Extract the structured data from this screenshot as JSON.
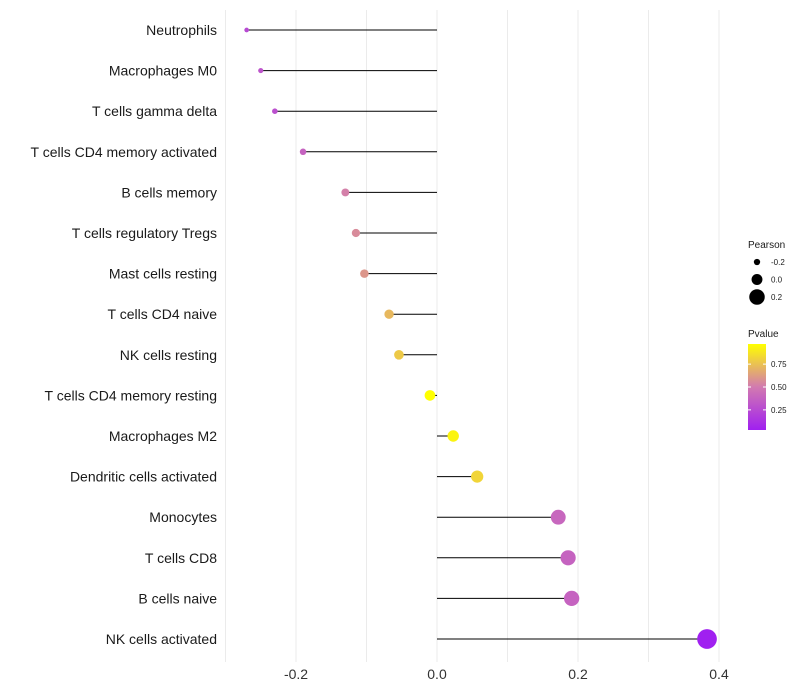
{
  "chart_data": {
    "type": "lollipop",
    "categories": [
      "Neutrophils",
      "Macrophages M0",
      "T cells gamma delta",
      "T cells CD4 memory activated",
      "B cells memory",
      "T cells regulatory  Tregs ",
      "Mast cells resting",
      "T cells CD4 naive",
      "NK cells resting",
      "T cells CD4 memory resting",
      "Macrophages M2",
      "Dendritic cells activated",
      "Monocytes",
      "T cells CD8",
      "B cells naive",
      "NK cells activated"
    ],
    "pearson": [
      -0.27,
      -0.25,
      -0.23,
      -0.19,
      -0.13,
      -0.115,
      -0.103,
      -0.068,
      -0.054,
      -0.01,
      0.023,
      0.057,
      0.172,
      0.186,
      0.191,
      0.383
    ],
    "pvalue": [
      0.25,
      0.3,
      0.28,
      0.38,
      0.52,
      0.56,
      0.6,
      0.72,
      0.78,
      0.97,
      0.93,
      0.82,
      0.4,
      0.38,
      0.38,
      0.03
    ],
    "xlim": [
      -0.3,
      0.42
    ],
    "x_ticks": [
      -0.2,
      0.0,
      0.2,
      0.4
    ],
    "x_tick_labels": [
      "-0.2",
      "0.0",
      "0.2",
      "0.4"
    ],
    "xlabel": "",
    "ylabel": "",
    "title": "",
    "legend_size": {
      "title": "Pearson",
      "values": [
        -0.2,
        0.0,
        0.2
      ],
      "labels": [
        "-0.2",
        "0.0",
        "0.2"
      ]
    },
    "legend_color": {
      "title": "Pvalue",
      "ticks": [
        0.25,
        0.5,
        0.75
      ],
      "labels": [
        "0.25",
        "0.50",
        "0.75"
      ],
      "range": [
        0.03,
        0.97
      ],
      "low_color": "#a020f0",
      "mid_color": "#d27ab0",
      "high_color": "#ffff00"
    },
    "legend_position": "right",
    "grid": true
  }
}
